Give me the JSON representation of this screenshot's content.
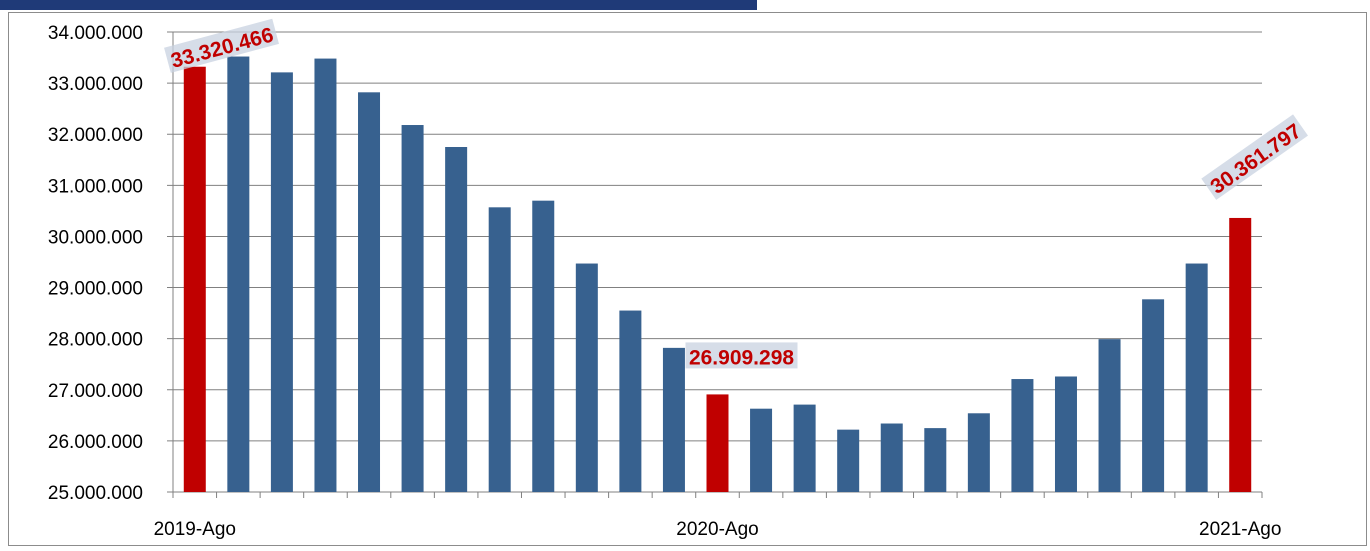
{
  "colors": {
    "bar": "#37618f",
    "highlight": "#c00000",
    "label_box": "#c8d2e0",
    "grid": "#808080",
    "header_bar": "#1f3a78"
  },
  "chart_data": {
    "type": "bar",
    "title": "",
    "xlabel": "",
    "ylabel": "",
    "ylim": [
      25000000,
      34000000
    ],
    "y_ticks": [
      "25.000.000",
      "26.000.000",
      "27.000.000",
      "28.000.000",
      "29.000.000",
      "30.000.000",
      "31.000.000",
      "32.000.000",
      "33.000.000",
      "34.000.000"
    ],
    "y_tick_values": [
      25000000,
      26000000,
      27000000,
      28000000,
      29000000,
      30000000,
      31000000,
      32000000,
      33000000,
      34000000
    ],
    "x_tick_labels": [
      {
        "index": 0,
        "label": "2019-Ago"
      },
      {
        "index": 12,
        "label": "2020-Ago"
      },
      {
        "index": 24,
        "label": "2021-Ago"
      }
    ],
    "grid": true,
    "legend": "none",
    "values": [
      33320466,
      33520000,
      33210000,
      33480000,
      32820000,
      32180000,
      31750000,
      30570000,
      30700000,
      29470000,
      28550000,
      27820000,
      26909298,
      26630000,
      26710000,
      26220000,
      26340000,
      26250000,
      26540000,
      27210000,
      27260000,
      27990000,
      28770000,
      29470000,
      30361797
    ],
    "highlight_indices": [
      0,
      12,
      24
    ],
    "data_labels": [
      {
        "index": 0,
        "text": "33.320.466",
        "rotation": -15
      },
      {
        "index": 12,
        "text": "26.909.298",
        "rotation": 0
      },
      {
        "index": 24,
        "text": "30.361.797",
        "rotation": -35
      }
    ]
  }
}
